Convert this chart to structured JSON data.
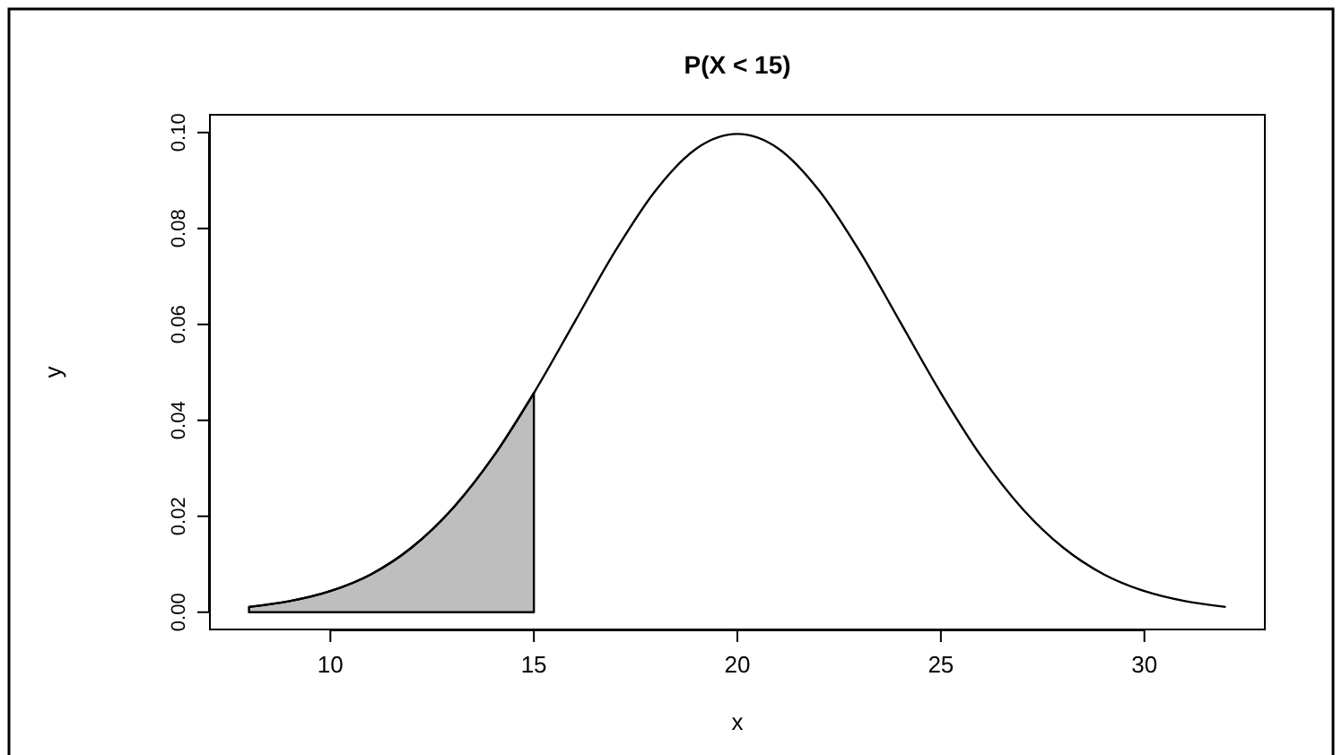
{
  "chart_data": {
    "type": "line",
    "title": "P(X < 15)",
    "xlabel": "x",
    "ylabel": "y",
    "xlim": [
      7.04,
      32.96
    ],
    "ylim": [
      -0.0036,
      0.1037
    ],
    "xticks": [
      10,
      15,
      20,
      25,
      30
    ],
    "yticks": [
      {
        "value": 0,
        "label": "0.00"
      },
      {
        "value": 0.02,
        "label": "0.02"
      },
      {
        "value": 0.04,
        "label": "0.04"
      },
      {
        "value": 0.06,
        "label": "0.06"
      },
      {
        "value": 0.08,
        "label": "0.08"
      },
      {
        "value": 0.1,
        "label": "0.10"
      }
    ],
    "grid": false,
    "series": [
      {
        "type": "area",
        "color": "#bebebe",
        "x": [
          8,
          9,
          10,
          11,
          12,
          13,
          14,
          15
        ],
        "values": [
          0.0011,
          0.0023,
          0.0044,
          0.0079,
          0.0135,
          0.0216,
          0.0324,
          0.0457
        ]
      },
      {
        "color": "#000000",
        "x": [
          8,
          9,
          10,
          11,
          12,
          13,
          14,
          15,
          16,
          17,
          18,
          19,
          20,
          21,
          22,
          23,
          24,
          25,
          26,
          27,
          28,
          29,
          30,
          31,
          32
        ],
        "values": [
          0.0011,
          0.0023,
          0.0044,
          0.0079,
          0.0135,
          0.0216,
          0.0324,
          0.0457,
          0.0605,
          0.0753,
          0.088,
          0.0967,
          0.0997,
          0.0967,
          0.088,
          0.0753,
          0.0605,
          0.0457,
          0.0324,
          0.0216,
          0.0135,
          0.0079,
          0.0044,
          0.0023,
          0.0011
        ]
      }
    ]
  }
}
